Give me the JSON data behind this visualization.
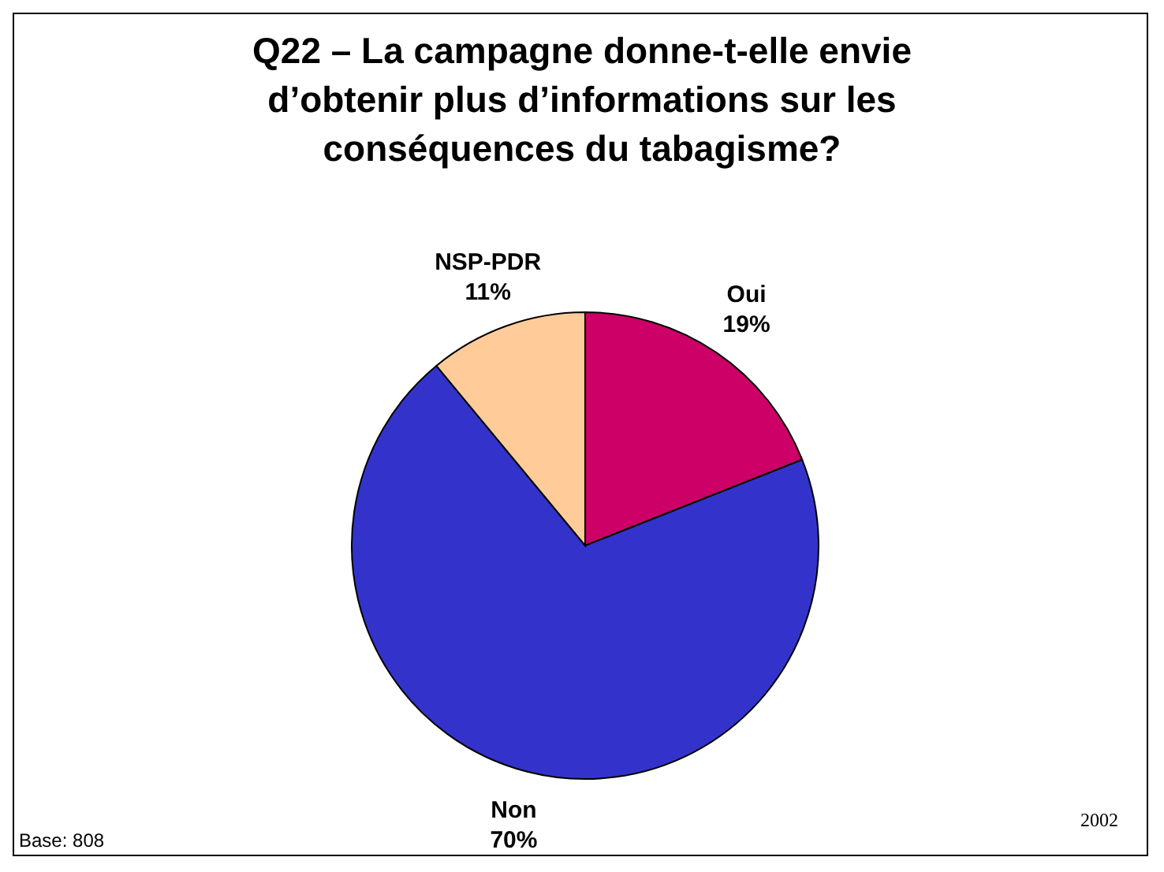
{
  "chart_data": {
    "type": "pie",
    "title": "Q22 – La campagne donne-t-elle envie d’obtenir plus d’informations sur les conséquences du tabagisme?",
    "categories": [
      "Oui",
      "Non",
      "NSP-PDR"
    ],
    "values": [
      19,
      70,
      11
    ],
    "value_labels": [
      "19%",
      "70%",
      "11%"
    ],
    "colors": [
      "#cc0066",
      "#3333cc",
      "#ffcc99"
    ],
    "annotations": [
      "Base: 808",
      "2002"
    ]
  }
}
